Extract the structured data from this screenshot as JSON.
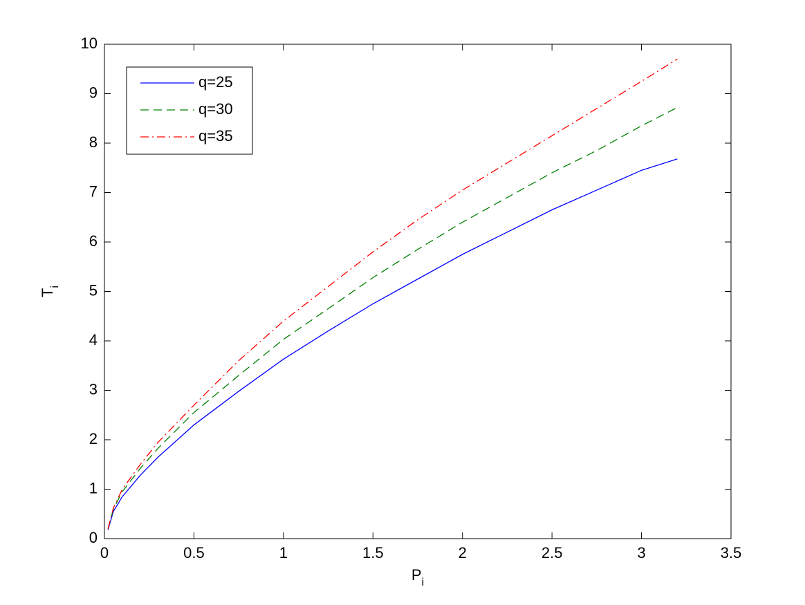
{
  "chart_data": {
    "type": "line",
    "xlabel": {
      "text": "P",
      "sub": "i"
    },
    "ylabel": {
      "text": "T",
      "sub": "i"
    },
    "x": [
      0.02,
      0.05,
      0.1,
      0.2,
      0.3,
      0.5,
      0.75,
      1,
      1.25,
      1.5,
      1.75,
      2,
      2.25,
      2.5,
      2.75,
      3,
      3.2
    ],
    "series": [
      {
        "name": "q=25",
        "color": "#0000ff",
        "dash": "solid",
        "values": [
          0.18,
          0.55,
          0.85,
          1.28,
          1.65,
          2.3,
          2.98,
          3.63,
          4.2,
          4.75,
          5.25,
          5.75,
          6.2,
          6.65,
          7.05,
          7.45,
          7.68
        ]
      },
      {
        "name": "q=30",
        "color": "#008000",
        "dash": "dashed",
        "values": [
          0.2,
          0.6,
          0.95,
          1.42,
          1.83,
          2.55,
          3.3,
          4.03,
          4.65,
          5.28,
          5.85,
          6.4,
          6.9,
          7.4,
          7.85,
          8.35,
          8.72
        ]
      },
      {
        "name": "q=35",
        "color": "#ff0000",
        "dash": "dashdot",
        "values": [
          0.2,
          0.62,
          1.0,
          1.5,
          1.95,
          2.7,
          3.6,
          4.4,
          5.1,
          5.8,
          6.45,
          7.05,
          7.6,
          8.15,
          8.7,
          9.25,
          9.7
        ]
      }
    ],
    "xlim": [
      0,
      3.5
    ],
    "xticks": [
      0,
      0.5,
      1,
      1.5,
      2,
      2.5,
      3,
      3.5
    ],
    "ylim": [
      0,
      10
    ],
    "yticks": [
      0,
      1,
      2,
      3,
      4,
      5,
      6,
      7,
      8,
      9,
      10
    ],
    "grid": false,
    "legend": "upper-left"
  }
}
